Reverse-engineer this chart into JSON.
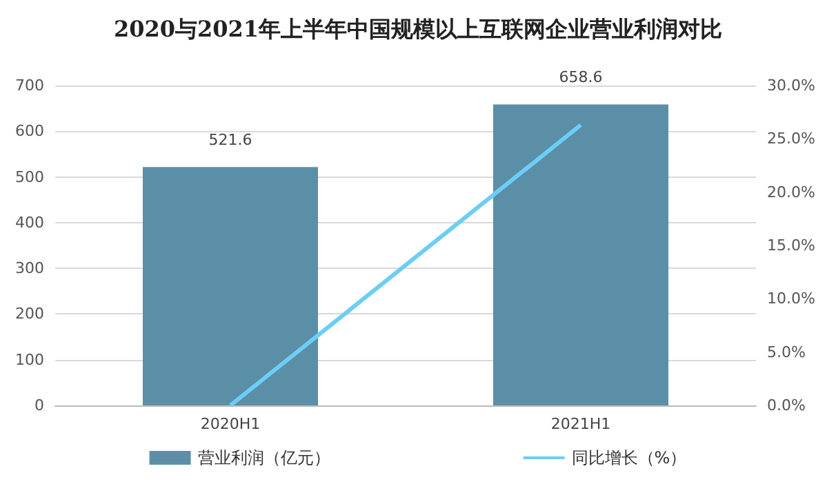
{
  "chart_data": {
    "type": "bar",
    "title": "2020与2021年上半年中国规模以上互联网企业营业利润对比",
    "categories": [
      "2020H1",
      "2021H1"
    ],
    "series": [
      {
        "name": "营业利润（亿元）",
        "color": "#5b8fa8",
        "values": [
          521.6,
          658.6
        ],
        "value_labels": [
          "521.6",
          "658.6"
        ]
      },
      {
        "name": "同比增长（%）",
        "type": "line",
        "axis": "y2",
        "color": "#6ccef5",
        "values": [
          0,
          26.3
        ]
      }
    ],
    "ylim": [
      0,
      700
    ],
    "yticks": [
      0,
      100,
      200,
      300,
      400,
      500,
      600,
      700
    ],
    "y2lim": [
      0,
      30
    ],
    "y2ticks": [
      {
        "value": 0,
        "label": "0.0%"
      },
      {
        "value": 5,
        "label": "5.0%"
      },
      {
        "value": 10,
        "label": "10.0%"
      },
      {
        "value": 15,
        "label": "15.0%"
      },
      {
        "value": 20,
        "label": "20.0%"
      },
      {
        "value": 25,
        "label": "25.0%"
      },
      {
        "value": 30,
        "label": "30.0%"
      }
    ],
    "grid": "y",
    "legend": "bottom",
    "marker": "none"
  }
}
